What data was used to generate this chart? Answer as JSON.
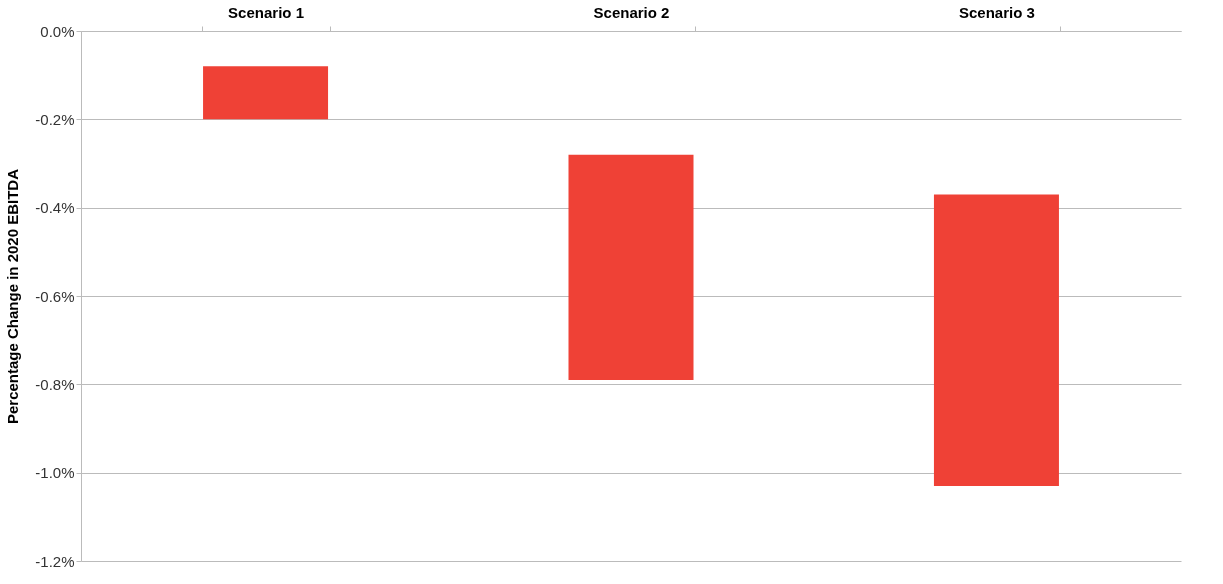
{
  "chart_data": {
    "type": "bar",
    "ylabel": "Percentage Change in 2020 EBITDA",
    "categories": [
      "Scenario 1",
      "Scenario 2",
      "Scenario 3"
    ],
    "base": [
      -0.2,
      -0.79,
      -1.03
    ],
    "values": [
      0.12,
      0.51,
      0.66
    ],
    "color": "#ef4136",
    "ylim": [
      -1.2,
      0
    ],
    "yticks": [
      {
        "value": 0,
        "label": "0.0%"
      },
      {
        "value": -0.2,
        "label": "-0.2%"
      },
      {
        "value": -0.4,
        "label": "-0.4%"
      },
      {
        "value": -0.6,
        "label": "-0.6%"
      },
      {
        "value": -0.8,
        "label": "-0.8%"
      },
      {
        "value": -1.0,
        "label": "-1.0%"
      },
      {
        "value": -1.2,
        "label": "-1.2%"
      }
    ],
    "grid": "y"
  }
}
